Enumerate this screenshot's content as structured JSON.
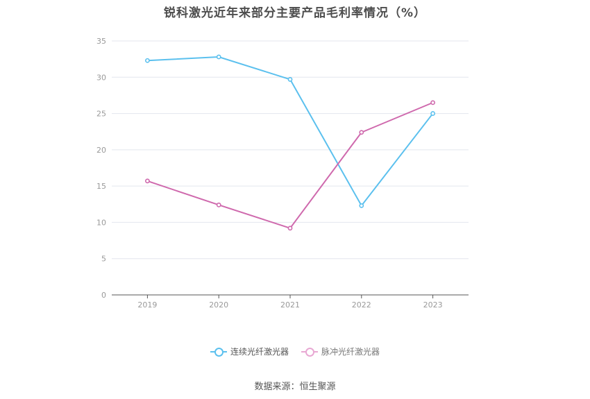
{
  "chart_data": {
    "type": "line",
    "title": "锐科激光近年来部分主要产品毛利率情况（%）",
    "categories": [
      "2019",
      "2020",
      "2021",
      "2022",
      "2023"
    ],
    "y_ticks": [
      "0",
      "5",
      "10",
      "15",
      "20",
      "25",
      "30",
      "35"
    ],
    "ylim": [
      0,
      35
    ],
    "grid": true,
    "legend_position": "bottom",
    "series": [
      {
        "name": "连续光纤激光器",
        "color": "#5bc0ee",
        "values": [
          32.3,
          32.8,
          29.7,
          12.3,
          25.0
        ]
      },
      {
        "name": "脉冲光纤激光器",
        "color": "#cf69ad",
        "values": [
          15.7,
          12.4,
          9.2,
          22.4,
          26.5
        ]
      }
    ]
  },
  "source": "数据来源：恒生聚源"
}
